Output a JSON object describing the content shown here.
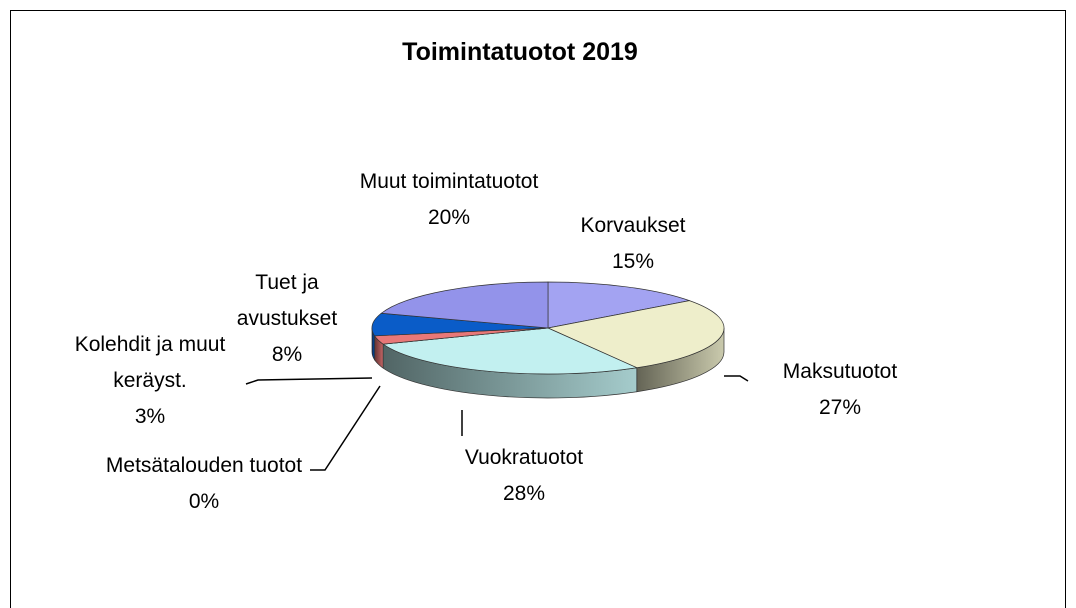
{
  "chart_data": {
    "type": "pie3d",
    "title": "Toimintatuotot 2019",
    "categories": [
      "Korvaukset",
      "Maksutuotot",
      "Vuokratuotot",
      "Metsätalouden tuotot",
      "Kolehdit ja muut keräyst.",
      "Tuet ja avustukset",
      "Muut toimintatuotot"
    ],
    "values": [
      15,
      27,
      28,
      0,
      3,
      8,
      20
    ],
    "value_labels": [
      "15%",
      "27%",
      "28%",
      "0%",
      "3%",
      "8%",
      "20%"
    ],
    "colors": [
      "#a3a3f2",
      "#eeeecb",
      "#c2f0f0",
      "#6b8e23",
      "#e87878",
      "#0a5cc8",
      "#9393ea"
    ]
  }
}
